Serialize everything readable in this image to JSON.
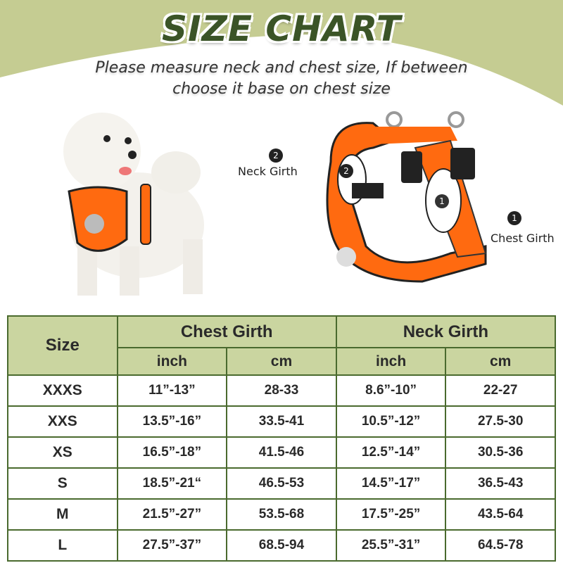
{
  "header": {
    "title": "SIZE CHART",
    "subtitle_line1": "Please measure neck and chest size, If between",
    "subtitle_line2": "choose it base on chest size"
  },
  "labels": {
    "neck_num": "2",
    "neck": "Neck Girth",
    "chest_num": "1",
    "chest": "Chest Girth"
  },
  "colors": {
    "header_bg": "#c5cc92",
    "title": "#3b5427",
    "table_header": "#cad5a0",
    "border": "#4a6a2e",
    "harness": "#ff6a10"
  },
  "table": {
    "size_header": "Size",
    "chest_header": "Chest Girth",
    "neck_header": "Neck Girth",
    "inch": "inch",
    "cm": "cm",
    "rows": [
      [
        "XXXS",
        "11”-13”",
        "28-33",
        "8.6”-10”",
        "22-27"
      ],
      [
        "XXS",
        "13.5”-16”",
        "33.5-41",
        "10.5”-12”",
        "27.5-30"
      ],
      [
        "XS",
        "16.5”-18”",
        "41.5-46",
        "12.5”-14”",
        "30.5-36"
      ],
      [
        "S",
        "18.5”-21“",
        "46.5-53",
        "14.5”-17”",
        "36.5-43"
      ],
      [
        "M",
        "21.5”-27”",
        "53.5-68",
        "17.5”-25”",
        "43.5-64"
      ],
      [
        "L",
        "27.5”-37”",
        "68.5-94",
        "25.5”-31”",
        "64.5-78"
      ]
    ]
  }
}
